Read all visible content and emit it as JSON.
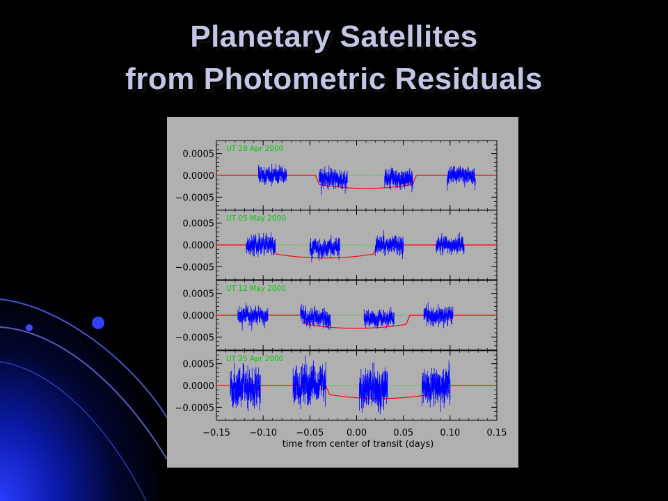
{
  "slide": {
    "title_line1": "Planetary Satellites",
    "title_line2": "from Photometric Residuals"
  },
  "colors": {
    "background": "#000000",
    "title": "#c4c6e6",
    "figure_background": "#b0b0b0",
    "data": "#0000ff",
    "model": "#ff0000",
    "reference_line": "#00cc00",
    "panel_label": "#00cc00",
    "axes": "#000000"
  },
  "chart_data": {
    "type": "line",
    "xlabel": "time from center of transit (days)",
    "xlim": [
      -0.15,
      0.15
    ],
    "x_ticks": [
      -0.15,
      -0.1,
      -0.05,
      0.0,
      0.05,
      0.1,
      0.15
    ],
    "x_tick_labels": [
      "−0.15",
      "−0.10",
      "−0.05",
      "0.00",
      "0.05",
      "0.10",
      "0.15"
    ],
    "ylim": [
      -0.00075,
      0.00075
    ],
    "y_ticks": [
      0.0005,
      0.0,
      -0.0005
    ],
    "y_tick_labels": [
      "0.0005",
      "0.0000",
      "−0.0005"
    ],
    "panels": [
      {
        "label": "UT 28 Apr 2000",
        "data_segments": [
          {
            "x_start": -0.105,
            "x_end": -0.075,
            "noise": 0.00012
          },
          {
            "x_start": -0.04,
            "x_end": -0.01,
            "noise": 0.00013
          },
          {
            "x_start": 0.03,
            "x_end": 0.06,
            "noise": 0.00013
          },
          {
            "x_start": 0.097,
            "x_end": 0.127,
            "noise": 0.00012
          }
        ],
        "model": {
          "dip_start": -0.044,
          "dip_end": 0.064,
          "depth": -0.0003
        },
        "reference_line": [
          -0.044,
          0.064
        ]
      },
      {
        "label": "UT 05 May 2000",
        "data_segments": [
          {
            "x_start": -0.118,
            "x_end": -0.087,
            "noise": 0.00013
          },
          {
            "x_start": -0.05,
            "x_end": -0.018,
            "noise": 0.00013
          },
          {
            "x_start": 0.02,
            "x_end": 0.05,
            "noise": 0.00012
          },
          {
            "x_start": 0.085,
            "x_end": 0.115,
            "noise": 0.00012
          }
        ],
        "model": {
          "dip_start": -0.09,
          "dip_end": 0.022,
          "depth": -0.0003
        },
        "reference_line": [
          -0.09,
          0.022
        ]
      },
      {
        "label": "UT 12 May 2000",
        "data_segments": [
          {
            "x_start": -0.127,
            "x_end": -0.095,
            "noise": 0.00012
          },
          {
            "x_start": -0.06,
            "x_end": -0.028,
            "noise": 0.00013
          },
          {
            "x_start": 0.008,
            "x_end": 0.04,
            "noise": 0.00012
          },
          {
            "x_start": 0.072,
            "x_end": 0.103,
            "noise": 0.00013
          }
        ],
        "model": {
          "dip_start": -0.058,
          "dip_end": 0.057,
          "depth": -0.0003
        },
        "reference_line": [
          -0.058,
          0.057
        ]
      },
      {
        "label": "UT 25 Apr 2000",
        "data_segments": [
          {
            "x_start": -0.135,
            "x_end": -0.103,
            "noise": 0.00028
          },
          {
            "x_start": -0.068,
            "x_end": -0.033,
            "noise": 0.00028
          },
          {
            "x_start": 0.003,
            "x_end": 0.033,
            "noise": 0.00028
          },
          {
            "x_start": 0.07,
            "x_end": 0.1,
            "noise": 0.00025
          }
        ],
        "model": {
          "dip_start": -0.033,
          "dip_end": 0.082,
          "depth": -0.0003
        },
        "reference_line": [
          -0.033,
          0.082
        ]
      }
    ]
  }
}
